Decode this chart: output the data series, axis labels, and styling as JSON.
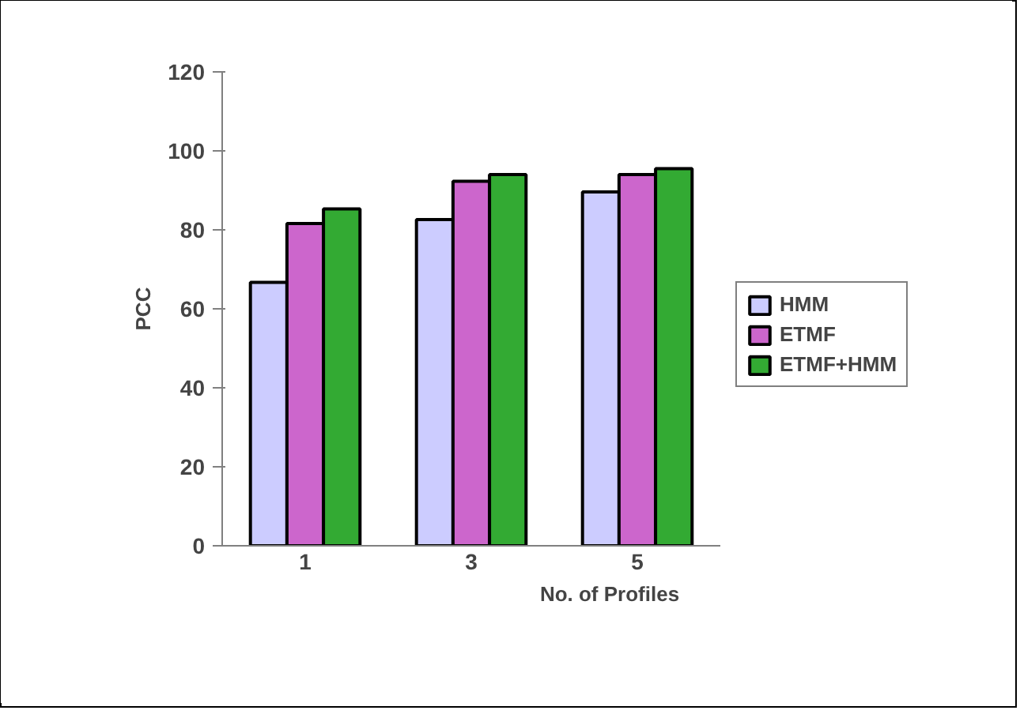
{
  "chart_data": {
    "type": "bar",
    "xlabel": "No. of Profiles",
    "ylabel": "PCC",
    "categories": [
      "1",
      "3",
      "5"
    ],
    "series": [
      {
        "name": "HMM",
        "color": "#ccccff",
        "values": [
          66.7,
          82.6,
          89.6
        ]
      },
      {
        "name": "ETMF",
        "color": "#cc66cc",
        "values": [
          81.6,
          92.3,
          94
        ]
      },
      {
        "name": "ETMF+HMM",
        "color": "#33aa33",
        "values": [
          85.3,
          94,
          95.5
        ]
      }
    ],
    "ylim": [
      0,
      120
    ],
    "yticks": [
      0,
      20,
      40,
      60,
      80,
      100,
      120
    ],
    "grid": false,
    "legend": "right"
  }
}
